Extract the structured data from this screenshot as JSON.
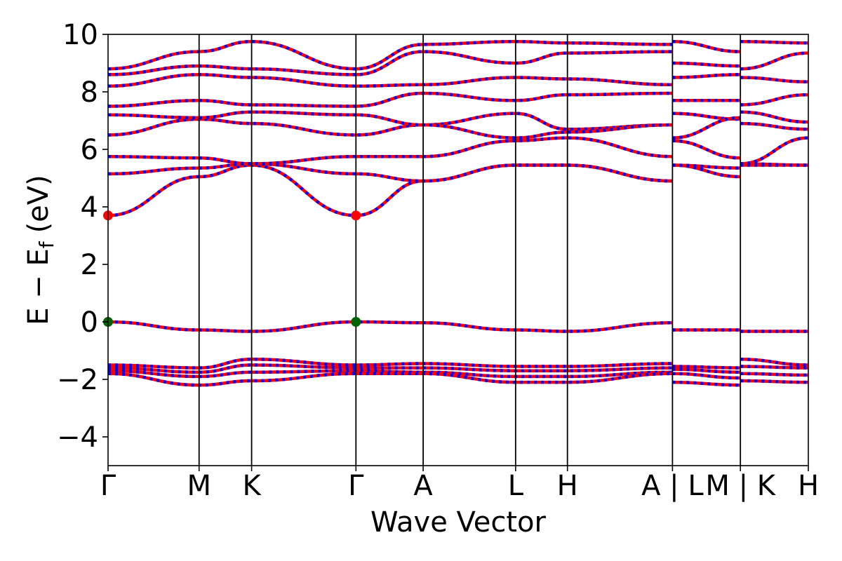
{
  "chart_data": {
    "type": "line",
    "title": "",
    "xlabel": "Wave Vector",
    "ylabel": "E − E",
    "ylabel_subscript": "f",
    "ylabel_unit": "(eV)",
    "ylim": [
      -5,
      10
    ],
    "yticks": [
      -4,
      -2,
      0,
      2,
      4,
      6,
      8,
      10
    ],
    "ytick_labels": [
      "−4",
      "−2",
      "0",
      "2",
      "4",
      "6",
      "8",
      "10"
    ],
    "grid": false,
    "kpoint_labels": [
      "Γ",
      "M",
      "K",
      "Γ",
      "A",
      "L",
      "H",
      "A | L",
      "M | K",
      "H"
    ],
    "kpoint_positions": [
      0.0,
      0.13,
      0.205,
      0.354,
      0.45,
      0.582,
      0.656,
      0.806,
      0.903,
      1.0
    ],
    "colors": {
      "band_red": "#ff0000",
      "band_blue": "#0000ff",
      "cbm_marker": "#ff0000",
      "vbm_marker": "#006400",
      "frame": "#000000"
    },
    "markers": [
      {
        "role": "cbm",
        "x": 0.0,
        "y": 3.7
      },
      {
        "role": "cbm",
        "x": 0.354,
        "y": 3.7
      },
      {
        "role": "vbm",
        "x": 0.0,
        "y": 0.0
      },
      {
        "role": "vbm",
        "x": 0.354,
        "y": 0.0
      }
    ],
    "series": [
      {
        "x": [
          0,
          0.13,
          0.205,
          0.354,
          0.45,
          0.582,
          0.656,
          0.806,
          0.806,
          0.903,
          0.903,
          1.0
        ],
        "y": [
          0,
          -0.28,
          -0.33,
          0,
          -0.03,
          -0.28,
          -0.33,
          -0.03,
          -0.28,
          -0.28,
          -0.33,
          -0.33
        ]
      },
      {
        "x": [
          0,
          0.13,
          0.205,
          0.354,
          0.45,
          0.582,
          0.656,
          0.806,
          0.806,
          0.903,
          0.903,
          1.0
        ],
        "y": [
          -1.5,
          -1.6,
          -1.3,
          -1.5,
          -1.45,
          -1.55,
          -1.55,
          -1.45,
          -1.55,
          -1.6,
          -1.3,
          -1.5
        ]
      },
      {
        "x": [
          0,
          0.13,
          0.205,
          0.354,
          0.45,
          0.582,
          0.656,
          0.806,
          0.806,
          0.903,
          0.903,
          1.0
        ],
        "y": [
          -1.6,
          -1.75,
          -1.5,
          -1.6,
          -1.6,
          -1.7,
          -1.7,
          -1.6,
          -1.65,
          -1.75,
          -1.55,
          -1.6
        ]
      },
      {
        "x": [
          0,
          0.13,
          0.205,
          0.354,
          0.45,
          0.582,
          0.656,
          0.806,
          0.806,
          0.903,
          0.903,
          1.0
        ],
        "y": [
          -1.7,
          -1.9,
          -1.75,
          -1.7,
          -1.75,
          -1.9,
          -1.9,
          -1.75,
          -1.8,
          -1.95,
          -1.8,
          -1.85
        ]
      },
      {
        "x": [
          0,
          0.13,
          0.205,
          0.354,
          0.45,
          0.582,
          0.656,
          0.806,
          0.806,
          0.903,
          0.903,
          1.0
        ],
        "y": [
          -1.8,
          -2.2,
          -2.05,
          -1.8,
          -1.8,
          -2.1,
          -2.1,
          -1.8,
          -2.1,
          -2.2,
          -2.05,
          -2.1
        ]
      },
      {
        "x": [
          0,
          0.13,
          0.205,
          0.354,
          0.45,
          0.582,
          0.656,
          0.806,
          0.806,
          0.903,
          0.903,
          1.0
        ],
        "y": [
          3.7,
          5.05,
          5.45,
          3.7,
          4.9,
          5.45,
          5.45,
          4.9,
          5.45,
          5.05,
          5.45,
          5.45
        ]
      },
      {
        "x": [
          0,
          0.13,
          0.205,
          0.354,
          0.45,
          0.582,
          0.656,
          0.806,
          0.806,
          0.903,
          0.903,
          1.0
        ],
        "y": [
          5.15,
          5.35,
          5.5,
          5.15,
          4.9,
          5.45,
          5.45,
          4.9,
          5.45,
          5.35,
          5.5,
          5.45
        ]
      },
      {
        "x": [
          0,
          0.13,
          0.205,
          0.354,
          0.45,
          0.582,
          0.656,
          0.806,
          0.806,
          0.903,
          0.903,
          1.0
        ],
        "y": [
          5.75,
          5.7,
          5.5,
          5.75,
          5.75,
          6.3,
          6.4,
          5.75,
          6.3,
          5.7,
          5.5,
          6.4
        ]
      },
      {
        "x": [
          0,
          0.13,
          0.205,
          0.354,
          0.45,
          0.582,
          0.656,
          0.806,
          0.806,
          0.903,
          0.903,
          1.0
        ],
        "y": [
          6.5,
          7.05,
          6.9,
          6.5,
          6.85,
          7.25,
          6.7,
          6.85,
          7.25,
          7.05,
          6.9,
          6.7
        ]
      },
      {
        "x": [
          0,
          0.13,
          0.205,
          0.354,
          0.45,
          0.582,
          0.656,
          0.806,
          0.806,
          0.903,
          0.903,
          1.0
        ],
        "y": [
          7.2,
          7.1,
          7.3,
          7.2,
          6.85,
          6.4,
          6.6,
          6.85,
          6.4,
          7.1,
          7.3,
          6.95
        ]
      },
      {
        "x": [
          0,
          0.13,
          0.205,
          0.354,
          0.45,
          0.582,
          0.656,
          0.806,
          0.806,
          0.903,
          0.903,
          1.0
        ],
        "y": [
          7.5,
          7.7,
          7.55,
          7.5,
          7.95,
          7.7,
          7.9,
          7.95,
          7.7,
          7.7,
          7.55,
          7.9
        ]
      },
      {
        "x": [
          0,
          0.13,
          0.205,
          0.354,
          0.45,
          0.582,
          0.656,
          0.806,
          0.806,
          0.903,
          0.903,
          1.0
        ],
        "y": [
          8.2,
          8.6,
          8.5,
          8.2,
          8.25,
          8.5,
          8.45,
          8.25,
          8.5,
          8.6,
          8.5,
          8.35
        ]
      },
      {
        "x": [
          0,
          0.13,
          0.205,
          0.354,
          0.45,
          0.582,
          0.656,
          0.806,
          0.806,
          0.903,
          0.903,
          1.0
        ],
        "y": [
          8.6,
          8.9,
          8.8,
          8.6,
          9.4,
          9.0,
          9.35,
          9.4,
          9.0,
          8.9,
          8.8,
          9.35
        ]
      },
      {
        "x": [
          0,
          0.13,
          0.205,
          0.354,
          0.45,
          0.582,
          0.656,
          0.806,
          0.806,
          0.903,
          0.903,
          1.0
        ],
        "y": [
          8.8,
          9.4,
          9.75,
          8.8,
          9.65,
          9.75,
          9.7,
          9.65,
          9.75,
          9.4,
          9.75,
          9.7
        ]
      }
    ]
  }
}
